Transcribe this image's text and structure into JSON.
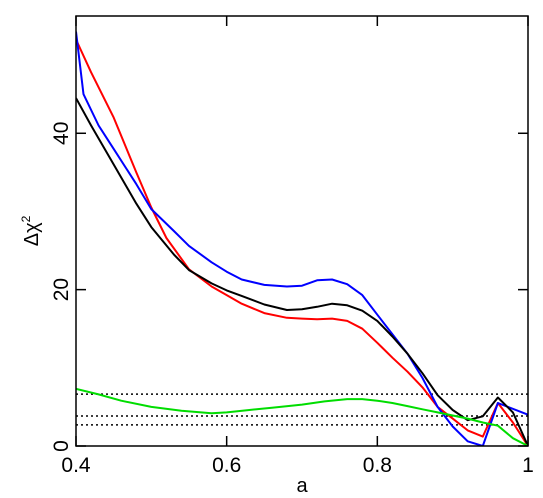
{
  "chart_data": {
    "type": "line",
    "xlabel": "a",
    "ylabel": "Δχ",
    "ylabel_superscript": "2",
    "xlim": [
      0.4,
      1.0
    ],
    "ylim": [
      0,
      55
    ],
    "xticks": [
      "0.4",
      "0.6",
      "0.8",
      "1"
    ],
    "xtick_values": [
      0.4,
      0.6,
      0.8,
      1.0
    ],
    "yticks": [
      "0",
      "20",
      "40"
    ],
    "ytick_values": [
      0,
      20,
      40
    ],
    "grid": false,
    "reference_lines": [
      {
        "y": 2.71,
        "style": "dotted",
        "color": "#000000"
      },
      {
        "y": 3.84,
        "style": "dotted",
        "color": "#000000"
      },
      {
        "y": 6.63,
        "style": "dotted",
        "color": "#000000"
      }
    ],
    "series": [
      {
        "color": "#ff0000",
        "x": [
          0.4,
          0.42,
          0.45,
          0.48,
          0.5,
          0.52,
          0.55,
          0.58,
          0.6,
          0.62,
          0.65,
          0.68,
          0.7,
          0.72,
          0.74,
          0.76,
          0.78,
          0.8,
          0.82,
          0.84,
          0.86,
          0.88,
          0.9,
          0.92,
          0.94,
          0.96,
          0.98,
          1.0
        ],
        "y": [
          52.0,
          47.8,
          42.0,
          35.0,
          30.5,
          26.6,
          22.6,
          20.4,
          19.3,
          18.2,
          17.0,
          16.4,
          16.3,
          16.2,
          16.3,
          16.0,
          15.0,
          13.2,
          11.3,
          9.5,
          7.5,
          5.0,
          3.5,
          2.0,
          1.2,
          5.5,
          3.0,
          0.0
        ]
      },
      {
        "color": "#0000ff",
        "x": [
          0.4,
          0.41,
          0.43,
          0.45,
          0.48,
          0.5,
          0.53,
          0.55,
          0.58,
          0.6,
          0.62,
          0.65,
          0.68,
          0.7,
          0.72,
          0.74,
          0.76,
          0.78,
          0.8,
          0.82,
          0.84,
          0.86,
          0.88,
          0.9,
          0.92,
          0.94,
          0.96,
          1.0
        ],
        "y": [
          53.0,
          45.0,
          41.0,
          38.0,
          33.5,
          30.3,
          27.5,
          25.6,
          23.5,
          22.3,
          21.3,
          20.6,
          20.4,
          20.5,
          21.2,
          21.3,
          20.7,
          19.3,
          16.8,
          14.3,
          11.8,
          8.7,
          5.0,
          2.5,
          0.6,
          0.0,
          5.5,
          4.0
        ]
      },
      {
        "color": "#000000",
        "x": [
          0.4,
          0.42,
          0.45,
          0.48,
          0.5,
          0.53,
          0.55,
          0.58,
          0.6,
          0.62,
          0.65,
          0.68,
          0.7,
          0.72,
          0.74,
          0.76,
          0.78,
          0.8,
          0.82,
          0.84,
          0.86,
          0.88,
          0.9,
          0.92,
          0.94,
          0.96,
          0.98,
          1.0
        ],
        "y": [
          44.5,
          41.0,
          36.0,
          31.0,
          28.0,
          24.5,
          22.5,
          20.8,
          19.9,
          19.2,
          18.1,
          17.4,
          17.5,
          17.8,
          18.2,
          18.0,
          17.3,
          16.0,
          14.0,
          11.8,
          9.3,
          6.5,
          4.6,
          3.3,
          3.8,
          6.2,
          4.3,
          0.0
        ]
      },
      {
        "color": "#00dd00",
        "x": [
          0.4,
          0.43,
          0.46,
          0.5,
          0.54,
          0.58,
          0.6,
          0.63,
          0.66,
          0.7,
          0.73,
          0.76,
          0.78,
          0.8,
          0.82,
          0.84,
          0.86,
          0.88,
          0.9,
          0.92,
          0.94,
          0.96,
          0.98,
          1.0
        ],
        "y": [
          7.3,
          6.6,
          5.8,
          5.0,
          4.5,
          4.2,
          4.3,
          4.6,
          4.9,
          5.3,
          5.7,
          6.0,
          6.0,
          5.8,
          5.5,
          5.1,
          4.7,
          4.3,
          3.9,
          3.5,
          3.0,
          2.6,
          1.0,
          0.0
        ]
      }
    ]
  }
}
